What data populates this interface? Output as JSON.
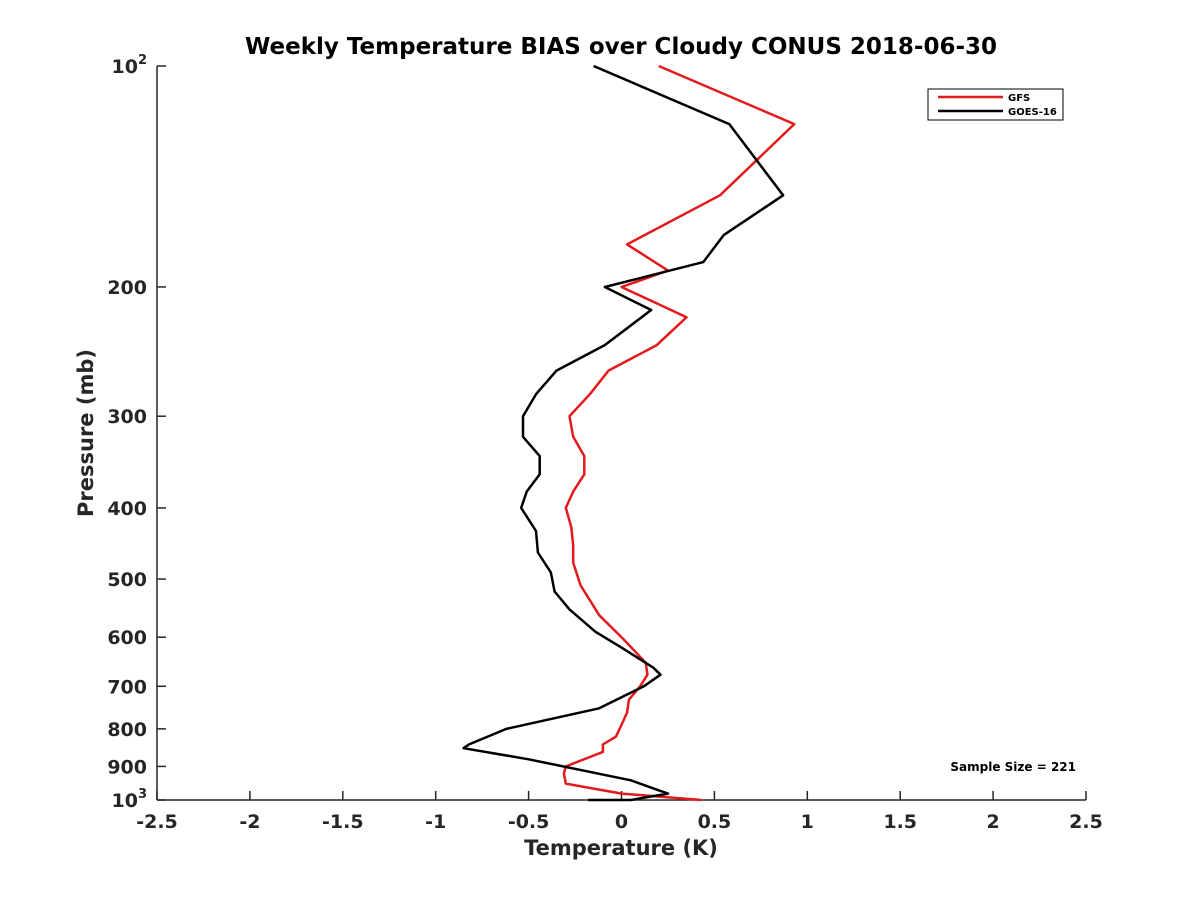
{
  "chart_data": {
    "type": "line",
    "title": "Weekly Temperature BIAS over Cloudy CONUS 2018-06-30",
    "xlabel": "Temperature (K)",
    "ylabel": "Pressure (mb)",
    "xlim": [
      -2.5,
      2.5
    ],
    "ylim": [
      100,
      1000
    ],
    "y_scale": "log",
    "y_reversed": true,
    "x_ticks": [
      -2.5,
      -2,
      -1.5,
      -1,
      -0.5,
      0,
      0.5,
      1,
      1.5,
      2,
      2.5
    ],
    "x_tick_labels": [
      "-2.5",
      "-2",
      "-1.5",
      "-1",
      "-0.5",
      "0",
      "0.5",
      "1",
      "1.5",
      "2",
      "2.5"
    ],
    "y_ticks": [
      100,
      200,
      300,
      400,
      500,
      600,
      700,
      800,
      900,
      1000
    ],
    "y_tick_labels": [
      {
        "base": "10",
        "sup": "2"
      },
      {
        "base": "200",
        "sup": ""
      },
      {
        "base": "300",
        "sup": ""
      },
      {
        "base": "400",
        "sup": ""
      },
      {
        "base": "500",
        "sup": ""
      },
      {
        "base": "600",
        "sup": ""
      },
      {
        "base": "700",
        "sup": ""
      },
      {
        "base": "800",
        "sup": ""
      },
      {
        "base": "900",
        "sup": ""
      },
      {
        "base": "10",
        "sup": "3"
      }
    ],
    "grid": false,
    "legend_position": "top-right",
    "series": [
      {
        "name": "GFS",
        "color": "#e31a1c",
        "points": [
          [
            0.2,
            100
          ],
          [
            0.93,
            120
          ],
          [
            0.53,
            150
          ],
          [
            0.03,
            175
          ],
          [
            0.25,
            190
          ],
          [
            0.0,
            200
          ],
          [
            0.35,
            220
          ],
          [
            0.19,
            240
          ],
          [
            -0.07,
            260
          ],
          [
            -0.17,
            280
          ],
          [
            -0.28,
            300
          ],
          [
            -0.26,
            320
          ],
          [
            -0.2,
            340
          ],
          [
            -0.2,
            360
          ],
          [
            -0.26,
            380
          ],
          [
            -0.3,
            400
          ],
          [
            -0.27,
            425
          ],
          [
            -0.26,
            450
          ],
          [
            -0.26,
            475
          ],
          [
            -0.22,
            510
          ],
          [
            -0.12,
            560
          ],
          [
            0.0,
            600
          ],
          [
            0.13,
            650
          ],
          [
            0.14,
            675
          ],
          [
            0.1,
            700
          ],
          [
            0.04,
            730
          ],
          [
            0.03,
            760
          ],
          [
            0.0,
            790
          ],
          [
            -0.03,
            820
          ],
          [
            -0.1,
            840
          ],
          [
            -0.1,
            860
          ],
          [
            -0.3,
            900
          ],
          [
            -0.31,
            920
          ],
          [
            -0.3,
            950
          ],
          [
            0.0,
            980
          ],
          [
            0.43,
            1000
          ]
        ]
      },
      {
        "name": "GOES-16",
        "color": "#000000",
        "points": [
          [
            -0.15,
            100
          ],
          [
            0.58,
            120
          ],
          [
            0.87,
            150
          ],
          [
            0.55,
            170
          ],
          [
            0.44,
            185
          ],
          [
            -0.09,
            200
          ],
          [
            0.16,
            215
          ],
          [
            -0.09,
            240
          ],
          [
            -0.35,
            260
          ],
          [
            -0.46,
            280
          ],
          [
            -0.53,
            300
          ],
          [
            -0.53,
            320
          ],
          [
            -0.44,
            340
          ],
          [
            -0.44,
            360
          ],
          [
            -0.51,
            380
          ],
          [
            -0.54,
            400
          ],
          [
            -0.46,
            430
          ],
          [
            -0.45,
            460
          ],
          [
            -0.38,
            490
          ],
          [
            -0.36,
            520
          ],
          [
            -0.28,
            550
          ],
          [
            -0.14,
            590
          ],
          [
            0.0,
            620
          ],
          [
            0.17,
            660
          ],
          [
            0.21,
            675
          ],
          [
            0.12,
            700
          ],
          [
            -0.12,
            750
          ],
          [
            -0.62,
            800
          ],
          [
            -0.82,
            840
          ],
          [
            -0.85,
            850
          ],
          [
            -0.5,
            880
          ],
          [
            0.05,
            940
          ],
          [
            0.2,
            970
          ],
          [
            0.25,
            980
          ],
          [
            0.05,
            1000
          ],
          [
            -0.18,
            1000
          ]
        ]
      }
    ],
    "annotation": "Sample Size = 221"
  }
}
